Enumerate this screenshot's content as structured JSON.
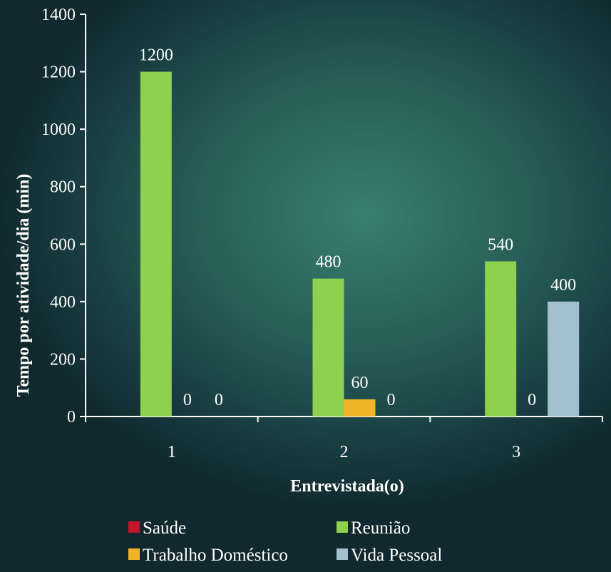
{
  "chart_data": {
    "type": "bar",
    "categories": [
      "1",
      "2",
      "3"
    ],
    "series": [
      {
        "name": "Saúde",
        "color": "#c0182a",
        "values": [
          null,
          null,
          null
        ]
      },
      {
        "name": "Reunião",
        "color": "#8ed14f",
        "values": [
          1200,
          480,
          540
        ]
      },
      {
        "name": "Trabalho Doméstico",
        "color": "#f0b429",
        "values": [
          0,
          60,
          0
        ]
      },
      {
        "name": "Vida Pessoal",
        "color": "#a3c0d0",
        "values": [
          0,
          0,
          400
        ]
      }
    ],
    "data_labels": [
      [
        "",
        "",
        ""
      ],
      [
        "1200",
        "480",
        "540"
      ],
      [
        "0",
        "60",
        "0"
      ],
      [
        "0",
        "0",
        "400"
      ]
    ],
    "xlabel": "Entrevistada(o)",
    "ylabel": "Tempo por atividade/dia  (min)",
    "ylim": [
      0,
      1400
    ],
    "yticks": [
      0,
      200,
      400,
      600,
      800,
      1000,
      1200,
      1400
    ],
    "grid": false,
    "legend": "bottom"
  }
}
